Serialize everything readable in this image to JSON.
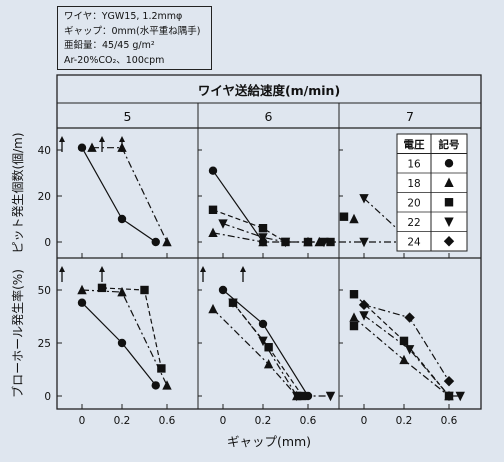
{
  "conditions": [
    "ワイヤ：YGW15, 1.2mmφ",
    "ギャップ：0mm(水平重ね隅手)",
    "亜鉛量：45/45 g/m²",
    "Ar-20%CO₂、100cpm"
  ],
  "chart_data": {
    "type": "line",
    "column_header": "ワイヤ送給速度(m/min)",
    "columns": [
      "5",
      "6",
      "7"
    ],
    "xlabel": "ギャップ(mm)",
    "xticks": [
      "0",
      "0.2",
      "0.6"
    ],
    "legend": {
      "header_voltage": "電圧",
      "header_symbol": "記号",
      "entries": [
        {
          "voltage": "16",
          "marker": "circle",
          "line": "solid"
        },
        {
          "voltage": "18",
          "marker": "triangle-up",
          "line": "dashdot"
        },
        {
          "voltage": "20",
          "marker": "square",
          "line": "dashed"
        },
        {
          "voltage": "22",
          "marker": "triangle-down",
          "line": "dashdot"
        },
        {
          "voltage": "24",
          "marker": "diamond",
          "line": "dashdot"
        }
      ]
    },
    "rows": [
      {
        "ylabel": "ピット発生個数(個/m)",
        "yticks": [
          "0",
          "20",
          "40"
        ],
        "ylim": [
          0,
          50
        ],
        "panels": [
          {
            "series": [
              {
                "voltage": "16",
                "points": [
                  [
                    0,
                    41
                  ],
                  [
                    0.2,
                    10
                  ],
                  [
                    0.5,
                    0
                  ]
                ]
              },
              {
                "voltage": "18",
                "points": [
                  [
                    0.05,
                    41
                  ],
                  [
                    0.2,
                    41
                  ],
                  [
                    0.6,
                    0
                  ]
                ]
              }
            ],
            "arrows": [
              -0.1,
              0.1,
              0.2
            ]
          },
          {
            "series": [
              {
                "voltage": "16",
                "points": [
                  [
                    -0.05,
                    31
                  ],
                  [
                    0.2,
                    0
                  ]
                ]
              },
              {
                "voltage": "20",
                "points": [
                  [
                    -0.05,
                    14
                  ],
                  [
                    0.2,
                    6
                  ],
                  [
                    0.4,
                    0
                  ],
                  [
                    0.6,
                    0
                  ],
                  [
                    0.8,
                    0
                  ]
                ]
              },
              {
                "voltage": "22",
                "points": [
                  [
                    0,
                    8
                  ],
                  [
                    0.2,
                    2
                  ],
                  [
                    0.4,
                    0
                  ]
                ]
              },
              {
                "voltage": "18",
                "points": [
                  [
                    -0.05,
                    4
                  ],
                  [
                    0.2,
                    0
                  ],
                  [
                    0.6,
                    0
                  ],
                  [
                    0.7,
                    0
                  ]
                ]
              }
            ],
            "arrows": []
          },
          {
            "series": [
              {
                "voltage": "22",
                "points": [
                  [
                    0,
                    19
                  ],
                  [
                    0.2,
                    3
                  ]
                ]
              },
              {
                "voltage": "20",
                "points": [
                  [
                    -0.1,
                    11
                  ]
                ]
              },
              {
                "voltage": "18",
                "points": [
                  [
                    -0.05,
                    10
                  ]
                ]
              },
              {
                "voltage": "22",
                "points": [
                  [
                    -0.2,
                    0
                  ],
                  [
                    0,
                    0
                  ],
                  [
                    0.2,
                    0
                  ],
                  [
                    0.4,
                    0
                  ]
                ]
              },
              {
                "voltage": "20",
                "points": [
                  [
                    0.55,
                    0
                  ]
                ]
              },
              {
                "voltage": "18",
                "points": [
                  [
                    0.6,
                    0
                  ]
                ]
              }
            ],
            "arrows": []
          }
        ]
      },
      {
        "ylabel": "ブローホール発生率(%)",
        "yticks": [
          "0",
          "25",
          "50"
        ],
        "ylim": [
          0,
          62.5
        ],
        "panels": [
          {
            "series": [
              {
                "voltage": "16",
                "points": [
                  [
                    0,
                    44
                  ],
                  [
                    0.2,
                    25
                  ],
                  [
                    0.5,
                    5
                  ]
                ]
              },
              {
                "voltage": "18",
                "points": [
                  [
                    0,
                    50
                  ],
                  [
                    0.2,
                    49
                  ],
                  [
                    0.6,
                    5
                  ]
                ]
              },
              {
                "voltage": "20",
                "points": [
                  [
                    0.1,
                    51
                  ],
                  [
                    0.4,
                    50
                  ],
                  [
                    0.55,
                    13
                  ]
                ]
              }
            ],
            "arrows": [
              -0.1,
              0.1
            ]
          },
          {
            "series": [
              {
                "voltage": "16",
                "points": [
                  [
                    0,
                    50
                  ],
                  [
                    0.2,
                    34
                  ],
                  [
                    0.6,
                    0
                  ]
                ]
              },
              {
                "voltage": "22",
                "points": [
                  [
                    0.05,
                    44
                  ],
                  [
                    0.2,
                    26
                  ],
                  [
                    0.5,
                    0
                  ],
                  [
                    0.8,
                    0
                  ]
                ]
              },
              {
                "voltage": "20",
                "points": [
                  [
                    0.05,
                    44
                  ],
                  [
                    0.25,
                    23
                  ],
                  [
                    0.55,
                    0
                  ]
                ]
              },
              {
                "voltage": "18",
                "points": [
                  [
                    -0.05,
                    41
                  ],
                  [
                    0.25,
                    15
                  ],
                  [
                    0.5,
                    0
                  ]
                ]
              }
            ],
            "arrows": [
              -0.1,
              0.1
            ]
          },
          {
            "series": [
              {
                "voltage": "24",
                "points": [
                  [
                    0,
                    43
                  ],
                  [
                    0.25,
                    37
                  ],
                  [
                    0.6,
                    7
                  ]
                ]
              },
              {
                "voltage": "20",
                "points": [
                  [
                    -0.05,
                    48
                  ],
                  [
                    0.2,
                    26
                  ],
                  [
                    0.6,
                    0
                  ]
                ]
              },
              {
                "voltage": "22",
                "points": [
                  [
                    0,
                    38
                  ],
                  [
                    0.25,
                    22
                  ],
                  [
                    0.6,
                    0
                  ],
                  [
                    0.7,
                    0
                  ]
                ]
              },
              {
                "voltage": "18",
                "points": [
                  [
                    -0.05,
                    37
                  ],
                  [
                    0.2,
                    17
                  ],
                  [
                    0.6,
                    0
                  ]
                ]
              },
              {
                "voltage": "20",
                "points": [
                  [
                    -0.05,
                    33
                  ]
                ]
              }
            ],
            "arrows": []
          }
        ]
      }
    ]
  }
}
